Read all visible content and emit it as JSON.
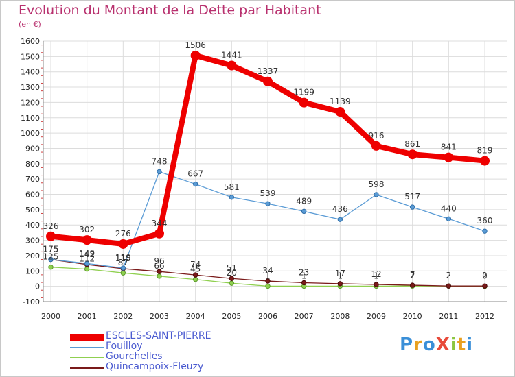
{
  "title": "Evolution du Montant de la Dette par Habitant",
  "subtitle": "(en €)",
  "logo": {
    "text": "ProXiti",
    "letters": [
      {
        "ch": "P",
        "color": "#3a8fd8"
      },
      {
        "ch": "r",
        "color": "#e8a020"
      },
      {
        "ch": "o",
        "color": "#3a8fd8"
      },
      {
        "ch": "X",
        "color": "#e84a3a"
      },
      {
        "ch": "i",
        "color": "#8cc63f"
      },
      {
        "ch": "t",
        "color": "#e8a020"
      },
      {
        "ch": "i",
        "color": "#3a8fd8"
      }
    ]
  },
  "chart_data": {
    "type": "line",
    "title": "Evolution du Montant de la Dette par Habitant",
    "subtitle": "(en €)",
    "x": [
      "2000",
      "2001",
      "2002",
      "2003",
      "2004",
      "2005",
      "2006",
      "2007",
      "2008",
      "2009",
      "2010",
      "2011",
      "2012"
    ],
    "ylim": [
      -100,
      1600
    ],
    "yticks": [
      -100,
      0,
      100,
      200,
      300,
      400,
      500,
      600,
      700,
      800,
      900,
      1000,
      1100,
      1200,
      1300,
      1400,
      1500,
      1600
    ],
    "grid": true,
    "legend_position": "bottom-left",
    "series": [
      {
        "name": "ESCLES-SAINT-PIERRE",
        "color": "#ee0000",
        "values": [
          326,
          302,
          276,
          344,
          1506,
          1441,
          1337,
          1199,
          1139,
          916,
          861,
          841,
          819
        ],
        "labels": [
          "326",
          "302",
          "276",
          "344",
          "1506",
          "1441",
          "1337",
          "1199",
          "1139",
          "916",
          "861",
          "841",
          "819"
        ]
      },
      {
        "name": "Fouilloy",
        "color": "#5a9bd5",
        "values": [
          175,
          149,
          119,
          748,
          667,
          581,
          539,
          489,
          436,
          598,
          517,
          440,
          360
        ],
        "labels": [
          "175",
          "149",
          "119",
          "748",
          "667",
          "581",
          "539",
          "489",
          "436",
          "598",
          "517",
          "440",
          "360"
        ]
      },
      {
        "name": "Gourchelles",
        "color": "#90d050",
        "values": [
          125,
          112,
          87,
          66,
          45,
          20,
          1,
          1,
          1,
          1,
          2,
          2,
          0
        ],
        "labels": [
          "125",
          "112",
          "87",
          "66",
          "45",
          "20",
          "1",
          "1",
          "1",
          "1",
          "2",
          "2",
          "0"
        ]
      },
      {
        "name": "Quincampoix-Fleuzy",
        "color": "#7a1a1a",
        "values": [
          175,
          142,
          115,
          96,
          74,
          51,
          34,
          23,
          17,
          12,
          7,
          2,
          2
        ],
        "labels": [
          "175",
          "142",
          "115",
          "96",
          "74",
          "51",
          "34",
          "23",
          "17",
          "12",
          "7",
          "2",
          "2"
        ]
      }
    ]
  }
}
